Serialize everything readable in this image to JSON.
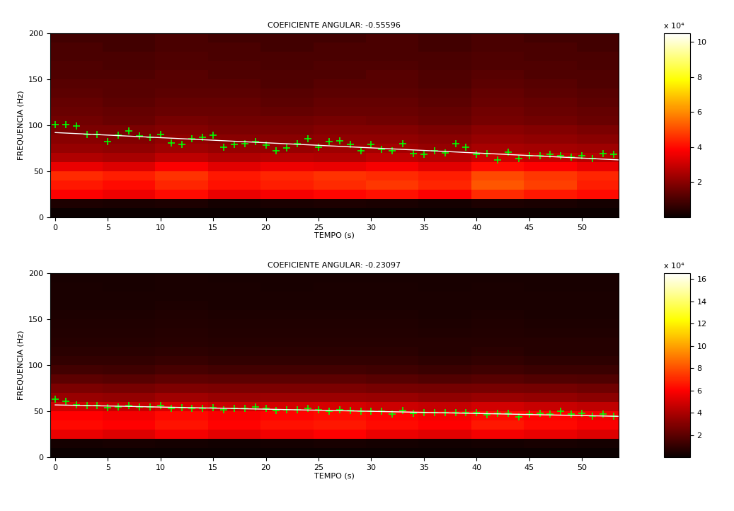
{
  "chart_data": [
    {
      "type": "heatmap",
      "title": "COEFICIENTE ANGULAR: -0.55596",
      "xlabel": "TEMPO (s)",
      "ylabel": "FREQUENCIA (Hz)",
      "xlim": [
        -0.5,
        53.5
      ],
      "xticks": [
        0,
        5,
        10,
        15,
        20,
        25,
        30,
        35,
        40,
        45,
        50
      ],
      "ylim": [
        0,
        200
      ],
      "yticks": [
        0,
        50,
        100,
        150,
        200
      ],
      "time_edges": [
        -0.5,
        4.5,
        9.5,
        14.5,
        19.5,
        24.5,
        29.5,
        34.5,
        39.5,
        44.5,
        49.5,
        53.5
      ],
      "freq_edges": [
        0,
        10,
        20,
        30,
        40,
        50,
        60,
        70,
        80,
        90,
        100,
        110,
        120,
        130,
        140,
        150,
        160,
        170,
        180,
        190,
        200
      ],
      "cells": [
        [
          0,
          0,
          0,
          0,
          0,
          0,
          0,
          0,
          0,
          0,
          0
        ],
        [
          3000,
          2500,
          3000,
          2000,
          2500,
          3000,
          2500,
          2000,
          3000,
          2500,
          2000
        ],
        [
          38000,
          36000,
          40000,
          35000,
          37000,
          39000,
          41000,
          38000,
          45000,
          42000,
          40000
        ],
        [
          42000,
          40000,
          44000,
          41000,
          43000,
          45000,
          47000,
          44000,
          52000,
          48000,
          43000
        ],
        [
          45000,
          43000,
          46000,
          42000,
          44000,
          46000,
          45000,
          43000,
          50000,
          47000,
          44000
        ],
        [
          35000,
          33000,
          38000,
          34000,
          36000,
          35000,
          37000,
          34000,
          40000,
          38000,
          35000
        ],
        [
          26000,
          25000,
          28000,
          26000,
          27000,
          26000,
          28000,
          27000,
          30000,
          29000,
          27000
        ],
        [
          22000,
          21000,
          23000,
          22000,
          22000,
          23000,
          24000,
          22000,
          25000,
          24000,
          23000
        ],
        [
          20000,
          19000,
          21000,
          20000,
          20000,
          21000,
          21000,
          20000,
          22000,
          21000,
          20000
        ],
        [
          18000,
          18000,
          19000,
          18000,
          18000,
          19000,
          19000,
          18000,
          20000,
          19000,
          18000
        ],
        [
          16000,
          15000,
          17000,
          16000,
          16000,
          17000,
          16000,
          15000,
          17000,
          16000,
          15000
        ],
        [
          15000,
          14000,
          15000,
          15000,
          14000,
          15000,
          15000,
          14000,
          16000,
          15000,
          14000
        ],
        [
          14000,
          13000,
          14000,
          14000,
          13000,
          14000,
          14000,
          13000,
          15000,
          14000,
          13000
        ],
        [
          13000,
          12000,
          13000,
          13000,
          12000,
          13000,
          13000,
          12000,
          14000,
          13000,
          12000
        ],
        [
          12000,
          12000,
          12000,
          12000,
          11000,
          12000,
          12000,
          11000,
          13000,
          12000,
          11000
        ],
        [
          11000,
          11000,
          12000,
          11000,
          11000,
          11000,
          12000,
          11000,
          12000,
          11000,
          11000
        ],
        [
          11000,
          10000,
          11000,
          11000,
          10000,
          11000,
          11000,
          10000,
          11000,
          11000,
          10000
        ],
        [
          10000,
          10000,
          11000,
          10000,
          10000,
          10000,
          10000,
          10000,
          11000,
          10000,
          10000
        ],
        [
          10000,
          9000,
          10000,
          10000,
          9000,
          10000,
          10000,
          9000,
          10000,
          10000,
          9000
        ],
        [
          9000,
          9000,
          10000,
          9000,
          9000,
          9000,
          10000,
          9000,
          10000,
          9000,
          9000
        ]
      ],
      "colorbar": {
        "lim": [
          0,
          105000
        ],
        "ticks": [
          {
            "value": 20000,
            "label": "2"
          },
          {
            "value": 40000,
            "label": "4"
          },
          {
            "value": 60000,
            "label": "6"
          },
          {
            "value": 80000,
            "label": "8"
          },
          {
            "value": 100000,
            "label": "10"
          }
        ],
        "multiplier": "x 10⁴"
      },
      "points": {
        "color": "#00ff00",
        "marker": "+",
        "x": [
          0,
          1,
          2,
          3,
          4,
          5,
          6,
          7,
          8,
          9,
          10,
          11,
          12,
          13,
          14,
          15,
          16,
          17,
          18,
          19,
          20,
          21,
          22,
          23,
          24,
          25,
          26,
          27,
          28,
          29,
          30,
          31,
          32,
          33,
          34,
          35,
          36,
          37,
          38,
          39,
          40,
          41,
          42,
          43,
          44,
          45,
          46,
          47,
          48,
          49,
          50,
          51,
          52,
          53
        ],
        "values": [
          101,
          101,
          99,
          90,
          90,
          82,
          89,
          94,
          88,
          87,
          90,
          81,
          79,
          85,
          87,
          89,
          76,
          79,
          80,
          82,
          78,
          72,
          75,
          80,
          85,
          76,
          82,
          83,
          79,
          72,
          79,
          74,
          72,
          80,
          69,
          68,
          72,
          70,
          80,
          76,
          68,
          69,
          62,
          71,
          64,
          67,
          67,
          68,
          67,
          65,
          67,
          64,
          69,
          68
        ]
      },
      "fit": {
        "color": "#ffffff",
        "line_style": "solid",
        "x": [
          0,
          53.5
        ],
        "values": [
          92,
          62.3
        ]
      }
    },
    {
      "type": "heatmap",
      "title": "COEFICIENTE ANGULAR: -0.23097",
      "xlabel": "TEMPO (s)",
      "ylabel": "FREQUENCIA (Hz)",
      "xlim": [
        -0.5,
        53.5
      ],
      "xticks": [
        0,
        5,
        10,
        15,
        20,
        25,
        30,
        35,
        40,
        45,
        50
      ],
      "ylim": [
        0,
        200
      ],
      "yticks": [
        0,
        50,
        100,
        150,
        200
      ],
      "time_edges": [
        -0.5,
        4.5,
        9.5,
        14.5,
        19.5,
        24.5,
        29.5,
        34.5,
        39.5,
        44.5,
        49.5,
        53.5
      ],
      "freq_edges": [
        0,
        10,
        20,
        30,
        40,
        50,
        60,
        70,
        80,
        90,
        100,
        110,
        120,
        130,
        140,
        150,
        160,
        170,
        180,
        190,
        200
      ],
      "cells": [
        [
          0,
          0,
          0,
          0,
          0,
          0,
          0,
          0,
          0,
          0,
          0
        ],
        [
          3000,
          3500,
          3000,
          2500,
          3000,
          3500,
          3000,
          2500,
          3000,
          3500,
          3000
        ],
        [
          55000,
          52000,
          58000,
          54000,
          57000,
          60000,
          56000,
          53000,
          58000,
          55000,
          52000
        ],
        [
          62000,
          60000,
          65000,
          61000,
          64000,
          66000,
          63000,
          60000,
          66000,
          62000,
          59000
        ],
        [
          60000,
          58000,
          62000,
          59000,
          61000,
          63000,
          60000,
          58000,
          62000,
          60000,
          57000
        ],
        [
          48000,
          46000,
          50000,
          47000,
          49000,
          50000,
          48000,
          46000,
          49000,
          47000,
          45000
        ],
        [
          35000,
          34000,
          37000,
          35000,
          36000,
          36000,
          35000,
          33000,
          35000,
          34000,
          32000
        ],
        [
          28000,
          27000,
          29000,
          28000,
          28000,
          28000,
          27000,
          26000,
          27000,
          26000,
          25000
        ],
        [
          20000,
          19000,
          21000,
          20000,
          20000,
          20000,
          19000,
          18000,
          19000,
          18000,
          17000
        ],
        [
          14000,
          13000,
          15000,
          14000,
          14000,
          14000,
          13000,
          12000,
          13000,
          12000,
          12000
        ],
        [
          10000,
          10000,
          11000,
          10000,
          10000,
          10000,
          10000,
          9000,
          10000,
          9000,
          9000
        ],
        [
          8000,
          8000,
          9000,
          8000,
          8000,
          8000,
          8000,
          7000,
          8000,
          7000,
          7000
        ],
        [
          7000,
          7000,
          7500,
          7000,
          7000,
          7000,
          7000,
          6500,
          7000,
          6500,
          6500
        ],
        [
          6000,
          6000,
          6500,
          6000,
          6000,
          6000,
          6000,
          5500,
          6000,
          5500,
          5500
        ],
        [
          5500,
          5500,
          6000,
          5500,
          5500,
          5500,
          5500,
          5000,
          5500,
          5000,
          5000
        ],
        [
          5000,
          5000,
          5500,
          5000,
          5000,
          5000,
          5000,
          4500,
          5000,
          4500,
          4500
        ],
        [
          4500,
          4500,
          5000,
          4500,
          4500,
          4500,
          4500,
          4000,
          4500,
          4000,
          4000
        ],
        [
          4000,
          4000,
          4500,
          4000,
          4000,
          4000,
          4000,
          4000,
          4000,
          4000,
          4000
        ],
        [
          4000,
          3500,
          4000,
          4000,
          3500,
          4000,
          4000,
          3500,
          4000,
          3500,
          3500
        ],
        [
          3500,
          3500,
          4000,
          3500,
          3500,
          3500,
          3500,
          3500,
          3500,
          3500,
          3500
        ]
      ],
      "colorbar": {
        "lim": [
          0,
          165000
        ],
        "ticks": [
          {
            "value": 20000,
            "label": "2"
          },
          {
            "value": 40000,
            "label": "4"
          },
          {
            "value": 60000,
            "label": "6"
          },
          {
            "value": 80000,
            "label": "8"
          },
          {
            "value": 100000,
            "label": "10"
          },
          {
            "value": 120000,
            "label": "12"
          },
          {
            "value": 140000,
            "label": "14"
          },
          {
            "value": 160000,
            "label": "16"
          }
        ],
        "multiplier": "x 10⁴"
      },
      "points": {
        "color": "#00ff00",
        "marker": "+",
        "x": [
          0,
          1,
          2,
          3,
          4,
          5,
          6,
          7,
          8,
          9,
          10,
          11,
          12,
          13,
          14,
          15,
          16,
          17,
          18,
          19,
          20,
          21,
          22,
          23,
          24,
          25,
          26,
          27,
          28,
          29,
          30,
          31,
          32,
          33,
          34,
          35,
          36,
          37,
          38,
          39,
          40,
          41,
          42,
          43,
          44,
          45,
          46,
          47,
          48,
          49,
          50,
          51,
          52,
          53
        ],
        "values": [
          63,
          61,
          57,
          56,
          56,
          54,
          55,
          56,
          55,
          55,
          56,
          53,
          54,
          53,
          53,
          54,
          52,
          53,
          53,
          55,
          53,
          51,
          52,
          52,
          53,
          52,
          50,
          52,
          51,
          50,
          50,
          50,
          47,
          51,
          48,
          49,
          49,
          49,
          49,
          49,
          49,
          46,
          48,
          48,
          44,
          47,
          48,
          47,
          50,
          47,
          48,
          45,
          47,
          45
        ]
      },
      "fit": {
        "color": "#ffffff",
        "line_style": "solid",
        "x": [
          0,
          53.5
        ],
        "values": [
          57,
          44.6
        ]
      }
    }
  ]
}
